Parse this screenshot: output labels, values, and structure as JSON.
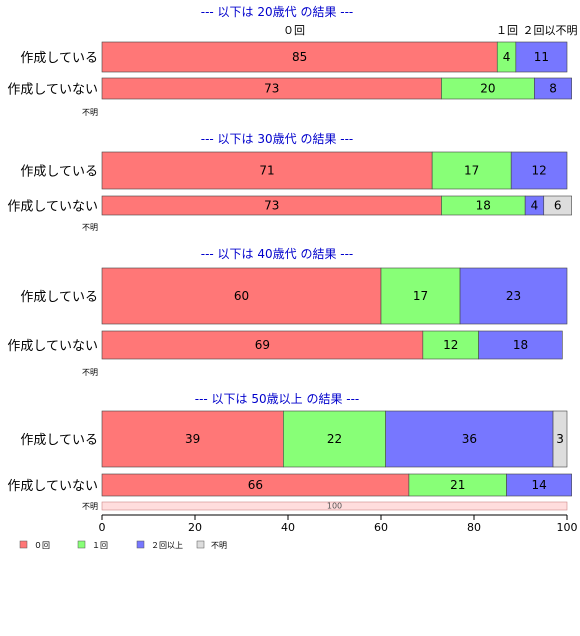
{
  "chart_data": {
    "type": "bar",
    "orientation": "horizontal",
    "stacked": true,
    "xlim": [
      0,
      100
    ],
    "xticks": [
      "0",
      "20",
      "40",
      "60",
      "80",
      "100"
    ],
    "categories": [
      "０回",
      "１回",
      "２回以上",
      "不明"
    ],
    "colors": {
      "０回": "#ff7777",
      "１回": "#88ff77",
      "２回以上": "#7777ff",
      "不明": "#dddddd"
    },
    "unknown_color": "#ffdddd",
    "column_headers": {
      "zero": "０回",
      "one": "１回",
      "two_plus_unknown": "２回以不明"
    },
    "unknown_row_label": "不明",
    "legend": {
      "placement": "bottom-left",
      "entries": [
        "０回",
        "１回",
        "２回以上",
        "不明"
      ]
    },
    "groups": [
      {
        "title": "--- 以下は 20歳代 の結果 ---",
        "rows": [
          {
            "label": "作成している",
            "values": [
              85,
              4,
              11,
              0
            ]
          },
          {
            "label": "作成していない",
            "values": [
              73,
              20,
              8,
              0
            ]
          }
        ],
        "unknown": null
      },
      {
        "title": "--- 以下は 30歳代 の結果 ---",
        "rows": [
          {
            "label": "作成している",
            "values": [
              71,
              17,
              12,
              0
            ]
          },
          {
            "label": "作成していない",
            "values": [
              73,
              18,
              4,
              6
            ]
          }
        ],
        "unknown": null
      },
      {
        "title": "--- 以下は 40歳代 の結果 ---",
        "rows": [
          {
            "label": "作成している",
            "values": [
              60,
              17,
              23,
              0
            ]
          },
          {
            "label": "作成していない",
            "values": [
              69,
              12,
              18,
              0
            ]
          }
        ],
        "unknown": null
      },
      {
        "title": "--- 以下は 50歳以上 の結果 ---",
        "rows": [
          {
            "label": "作成している",
            "values": [
              39,
              22,
              36,
              3
            ]
          },
          {
            "label": "作成していない",
            "values": [
              66,
              21,
              14,
              0
            ]
          }
        ],
        "unknown": 100
      }
    ]
  }
}
